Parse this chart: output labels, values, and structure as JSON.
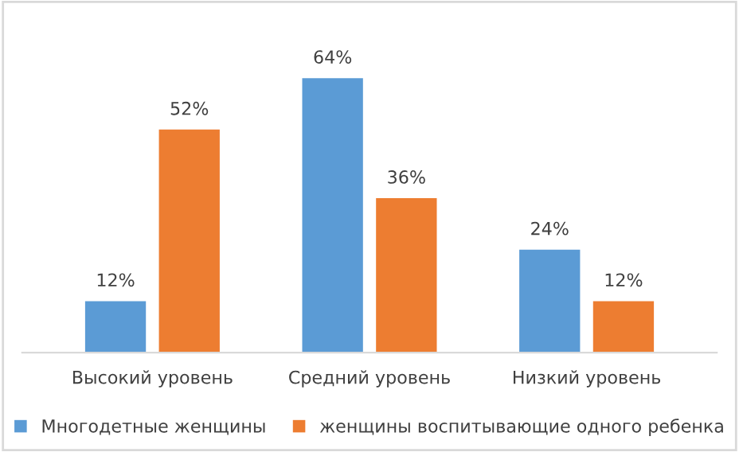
{
  "chart_data": {
    "type": "bar",
    "categories": [
      "Высокий уровень",
      "Средний уровень",
      "Низкий уровень"
    ],
    "series": [
      {
        "name": "Многодетные женщины",
        "color": "#5b9bd5",
        "values": [
          12,
          64,
          24
        ],
        "value_labels": [
          "12%",
          "64%",
          "24%"
        ]
      },
      {
        "name": "женщины воспитывающие одного ребенка",
        "color": "#ed7d31",
        "values": [
          52,
          36,
          12
        ],
        "value_labels": [
          "52%",
          "36%",
          "12%"
        ]
      }
    ],
    "legend": "bottom",
    "grid": false
  }
}
